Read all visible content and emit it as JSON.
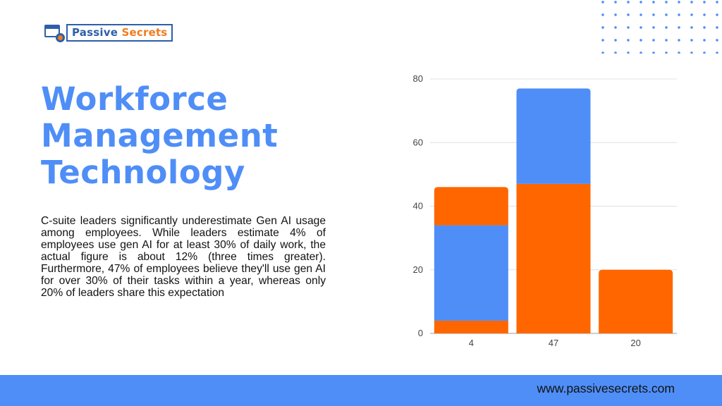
{
  "brand": {
    "name_part1": "Passive",
    "name_part2": "Secrets"
  },
  "title": {
    "line1": "Workforce",
    "line2": "Management",
    "line3": "Technology"
  },
  "description": "C-suite leaders significantly underestimate Gen AI usage among employees. While leaders estimate 4% of employees use gen AI for at least 30% of daily work, the actual figure is about 12% (three times greater). Furthermore, 47% of employees believe they'll use gen AI for over 30% of their tasks within a year, whereas only 20% of leaders share this expectation",
  "footer": {
    "url": "www.passivesecrets.com"
  },
  "colors": {
    "accent": "#4f8ef7",
    "orange": "#ff6600",
    "brand_blue": "#2e5fa8",
    "brand_orange": "#f07c1e"
  },
  "chart_data": {
    "type": "bar",
    "stacked": true,
    "categories": [
      "4",
      "47",
      "20"
    ],
    "series": [
      {
        "color": "#ff6600",
        "values": [
          4,
          47,
          20
        ]
      },
      {
        "color": "#4f8ef7",
        "values": [
          30,
          30,
          0
        ]
      },
      {
        "color": "#ff6600",
        "values": [
          12,
          0,
          0
        ]
      }
    ],
    "ylim": [
      0,
      80
    ],
    "yticks": [
      0,
      20,
      40,
      60,
      80
    ],
    "grid": true,
    "title": "",
    "xlabel": "",
    "ylabel": ""
  }
}
